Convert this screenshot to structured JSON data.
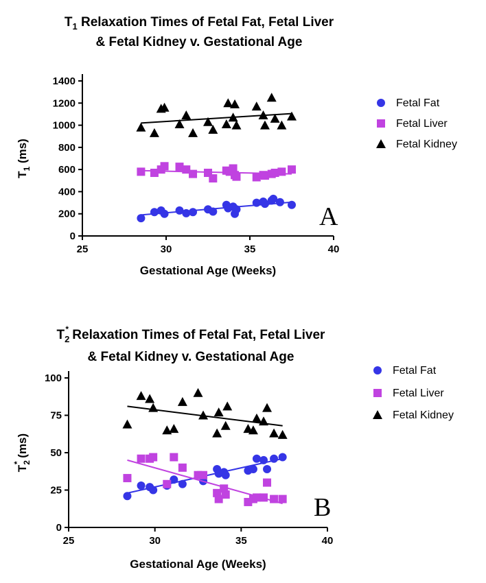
{
  "colors": {
    "fat": "#3535e6",
    "liver": "#c043e0",
    "kidney": "#000000"
  },
  "chart_data": [
    {
      "type": "scatter",
      "panel_label": "A",
      "title_prefix": "T",
      "title_sub": "1",
      "title_sup": "",
      "title_line1_rest": " Relaxation Times of Fetal Fat, Fetal Liver",
      "title_line2": "& Fetal Kidney v. Gestational Age",
      "xlabel": "Gestational Age (Weeks)",
      "ylabel_prefix": "T",
      "ylabel_sub": "1",
      "ylabel_sup": "",
      "ylabel_rest": " (ms)",
      "xlim": [
        25,
        40
      ],
      "ylim": [
        0,
        1400
      ],
      "xticks": [
        "25",
        "30",
        "35",
        "40"
      ],
      "yticks": [
        "0",
        "200",
        "400",
        "600",
        "800",
        "1000",
        "1200",
        "1400"
      ],
      "legend": "right",
      "series": [
        {
          "name": "Fetal Fat",
          "key": "fat",
          "marker": "circle",
          "x": [
            28.5,
            29.3,
            29.7,
            29.9,
            30.8,
            31.2,
            31.6,
            32.5,
            32.8,
            33.6,
            33.7,
            34.0,
            34.1,
            34.2,
            35.4,
            35.8,
            35.9,
            36.3,
            36.4,
            36.8,
            37.5
          ],
          "y": [
            160,
            215,
            230,
            200,
            230,
            205,
            215,
            240,
            220,
            280,
            250,
            265,
            200,
            240,
            300,
            310,
            290,
            320,
            335,
            305,
            280
          ],
          "fit": [
            [
              28.5,
              190
            ],
            [
              37.5,
              305
            ]
          ]
        },
        {
          "name": "Fetal Liver",
          "key": "liver",
          "marker": "square",
          "x": [
            28.5,
            29.3,
            29.7,
            29.9,
            30.8,
            31.2,
            31.6,
            32.5,
            32.8,
            33.6,
            33.8,
            34.0,
            34.1,
            34.2,
            35.4,
            35.8,
            35.9,
            36.3,
            36.5,
            36.9,
            37.5
          ],
          "y": [
            580,
            570,
            600,
            630,
            625,
            600,
            560,
            570,
            520,
            590,
            580,
            610,
            550,
            535,
            530,
            550,
            545,
            560,
            570,
            580,
            600
          ],
          "fit": [
            [
              28.5,
              590
            ],
            [
              37.5,
              560
            ]
          ]
        },
        {
          "name": "Fetal Kidney",
          "key": "kidney",
          "marker": "triangle",
          "x": [
            28.5,
            29.3,
            29.7,
            29.9,
            30.8,
            31.2,
            31.6,
            32.5,
            32.8,
            33.6,
            33.7,
            34.0,
            34.1,
            34.2,
            35.4,
            35.8,
            35.9,
            36.3,
            36.5,
            36.9,
            37.5
          ],
          "y": [
            980,
            930,
            1150,
            1160,
            1010,
            1090,
            930,
            1030,
            960,
            1010,
            1200,
            1070,
            1190,
            1000,
            1170,
            1090,
            1000,
            1250,
            1060,
            1000,
            1080
          ],
          "fit": [
            [
              28.5,
              1020
            ],
            [
              37.5,
              1105
            ]
          ]
        }
      ]
    },
    {
      "type": "scatter",
      "panel_label": "B",
      "title_prefix": "T",
      "title_sub": "2",
      "title_sup": "*",
      "title_line1_rest": " Relaxation Times of Fetal Fat, Fetal Liver",
      "title_line2": "& Fetal Kidney v. Gestational Age",
      "xlabel": "Gestational Age (Weeks)",
      "ylabel_prefix": "T",
      "ylabel_sub": "2",
      "ylabel_sup": "*",
      "ylabel_rest": " (ms)",
      "xlim": [
        25,
        40
      ],
      "ylim": [
        0,
        100
      ],
      "xticks": [
        "25",
        "30",
        "35",
        "40"
      ],
      "yticks": [
        "0",
        "25",
        "50",
        "75",
        "100"
      ],
      "legend": "right",
      "series": [
        {
          "name": "Fetal Fat",
          "key": "fat",
          "marker": "circle",
          "x": [
            28.4,
            29.2,
            29.7,
            29.9,
            30.7,
            31.1,
            31.6,
            32.5,
            32.8,
            33.6,
            33.7,
            34.0,
            34.1,
            35.4,
            35.7,
            35.9,
            36.3,
            36.5,
            36.9,
            37.4
          ],
          "y": [
            21,
            28,
            27,
            25,
            28,
            32,
            29,
            35,
            31,
            39,
            36,
            37,
            35,
            38,
            39,
            46,
            45,
            39,
            46,
            47
          ],
          "fit": [
            [
              28.4,
              23
            ],
            [
              37.4,
              46
            ]
          ]
        },
        {
          "name": "Fetal Liver",
          "key": "liver",
          "marker": "square",
          "x": [
            28.4,
            29.2,
            29.7,
            29.9,
            30.7,
            31.1,
            31.6,
            32.5,
            32.8,
            33.6,
            33.7,
            34.0,
            34.1,
            35.4,
            35.7,
            35.9,
            36.3,
            36.5,
            36.9,
            37.4
          ],
          "y": [
            33,
            46,
            46,
            47,
            29,
            47,
            40,
            35,
            35,
            23,
            19,
            26,
            22,
            17,
            19,
            20,
            20,
            30,
            19,
            19
          ],
          "fit": [
            [
              28.4,
              45
            ],
            [
              37.4,
              16
            ]
          ]
        },
        {
          "name": "Fetal Kidney",
          "key": "kidney",
          "marker": "triangle",
          "x": [
            28.4,
            29.2,
            29.7,
            29.9,
            30.7,
            31.1,
            31.6,
            32.5,
            32.8,
            33.6,
            33.7,
            34.1,
            34.2,
            35.4,
            35.7,
            35.9,
            36.3,
            36.5,
            36.9,
            37.4
          ],
          "y": [
            69,
            88,
            86,
            80,
            65,
            66,
            84,
            90,
            75,
            63,
            77,
            68,
            81,
            66,
            65,
            73,
            71,
            80,
            63,
            62
          ],
          "fit": [
            [
              28.4,
              81
            ],
            [
              37.4,
              68
            ]
          ]
        }
      ]
    }
  ]
}
